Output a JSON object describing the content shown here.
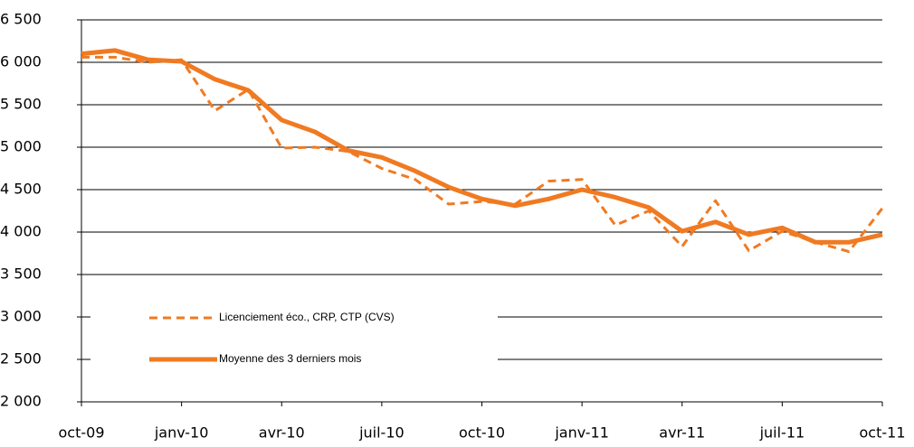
{
  "chart_data": {
    "type": "line",
    "categories": [
      "oct-09",
      null,
      null,
      "janv-10",
      null,
      null,
      "avr-10",
      null,
      null,
      "juil-10",
      null,
      null,
      "oct-10",
      null,
      null,
      "janv-11",
      null,
      null,
      "avr-11",
      null,
      null,
      "juil-11",
      null,
      null,
      "oct-11"
    ],
    "series": [
      {
        "name": "Licenciement éco., CRP, CTP (CVS)",
        "color": "#f07a22",
        "dash": true,
        "values": [
          6060,
          6060,
          6000,
          6030,
          5430,
          5680,
          4990,
          5000,
          4950,
          4750,
          4620,
          4330,
          4360,
          4330,
          4600,
          4620,
          4080,
          4250,
          3830,
          4370,
          3780,
          4010,
          3880,
          3770,
          4280
        ]
      },
      {
        "name": "Moyenne des 3 derniers mois",
        "color": "#f07a22",
        "dash": false,
        "values": [
          6100,
          6140,
          6030,
          6010,
          5800,
          5670,
          5320,
          5180,
          4960,
          4880,
          4720,
          4530,
          4390,
          4310,
          4390,
          4500,
          4410,
          4290,
          4010,
          4120,
          3970,
          4050,
          3880,
          3880,
          3970
        ]
      }
    ],
    "ylim": [
      2000,
      6500
    ],
    "yticks": [
      {
        "value": 2000,
        "label": "2 000"
      },
      {
        "value": 2500,
        "label": "2 500"
      },
      {
        "value": 3000,
        "label": "3 000"
      },
      {
        "value": 3500,
        "label": "3 500"
      },
      {
        "value": 4000,
        "label": "4 000"
      },
      {
        "value": 4500,
        "label": "4 500"
      },
      {
        "value": 5000,
        "label": "5 000"
      },
      {
        "value": 5500,
        "label": "5 500"
      },
      {
        "value": 6000,
        "label": "6 000"
      },
      {
        "value": 6500,
        "label": "6 500"
      }
    ],
    "grid": true
  }
}
